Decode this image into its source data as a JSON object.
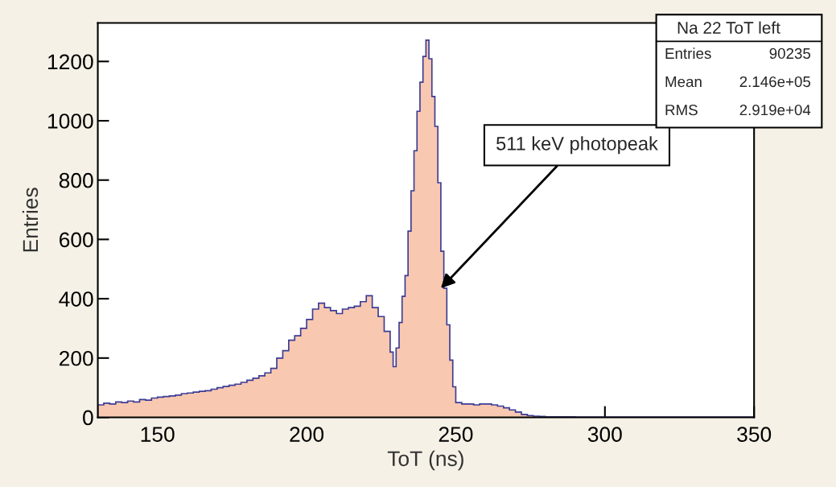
{
  "chart_data": {
    "type": "histogram",
    "title": "Na 22 ToT left",
    "xlabel": "ToT (ns)",
    "ylabel": "Entries",
    "bins": [
      130,
      132,
      134,
      136,
      138,
      140,
      142,
      144,
      146,
      148,
      150,
      152,
      154,
      156,
      158,
      160,
      162,
      164,
      166,
      168,
      170,
      172,
      174,
      176,
      178,
      180,
      182,
      184,
      186,
      188,
      190,
      192,
      194,
      196,
      198,
      200,
      202,
      204,
      206,
      208,
      210,
      212,
      214,
      216,
      218,
      220,
      222,
      224,
      226,
      228,
      229,
      230,
      231,
      232,
      233,
      234,
      235,
      236,
      237,
      238,
      239,
      240,
      241,
      242,
      243,
      244,
      245,
      246,
      247,
      248,
      249,
      250,
      252,
      254,
      256,
      258,
      260,
      262,
      264,
      266,
      268,
      270,
      272,
      274,
      276,
      278,
      280,
      290,
      300,
      310,
      320,
      330,
      340,
      350
    ],
    "values": [
      42,
      48,
      45,
      52,
      50,
      55,
      52,
      60,
      58,
      65,
      68,
      70,
      72,
      75,
      80,
      82,
      85,
      88,
      90,
      95,
      100,
      104,
      108,
      112,
      118,
      125,
      132,
      140,
      150,
      165,
      200,
      225,
      260,
      275,
      300,
      330,
      365,
      385,
      370,
      360,
      350,
      365,
      370,
      375,
      390,
      410,
      370,
      340,
      290,
      220,
      171,
      234,
      320,
      408,
      478,
      628,
      764,
      899,
      1032,
      1130,
      1217,
      1272,
      1209,
      1082,
      981,
      791,
      560,
      435,
      312,
      193,
      103,
      50,
      45,
      45,
      42,
      45,
      45,
      42,
      38,
      32,
      25,
      18,
      10,
      6,
      4,
      3,
      2,
      1,
      1,
      1,
      1,
      1,
      1
    ],
    "color": "#f9c8b0",
    "xlim": [
      130,
      350
    ],
    "ylim": [
      0,
      1330
    ],
    "xticks": [
      150,
      200,
      250,
      300,
      350
    ],
    "yticks": [
      0,
      200,
      400,
      600,
      800,
      1000,
      1200
    ],
    "grid": false,
    "legend": false,
    "annotations": [
      {
        "text": "511 keV photopeak",
        "x": 245,
        "y": 435
      },
      "Entries",
      "90235",
      "Mean",
      "2.146e+05",
      "RMS",
      "2.919e+04"
    ]
  }
}
